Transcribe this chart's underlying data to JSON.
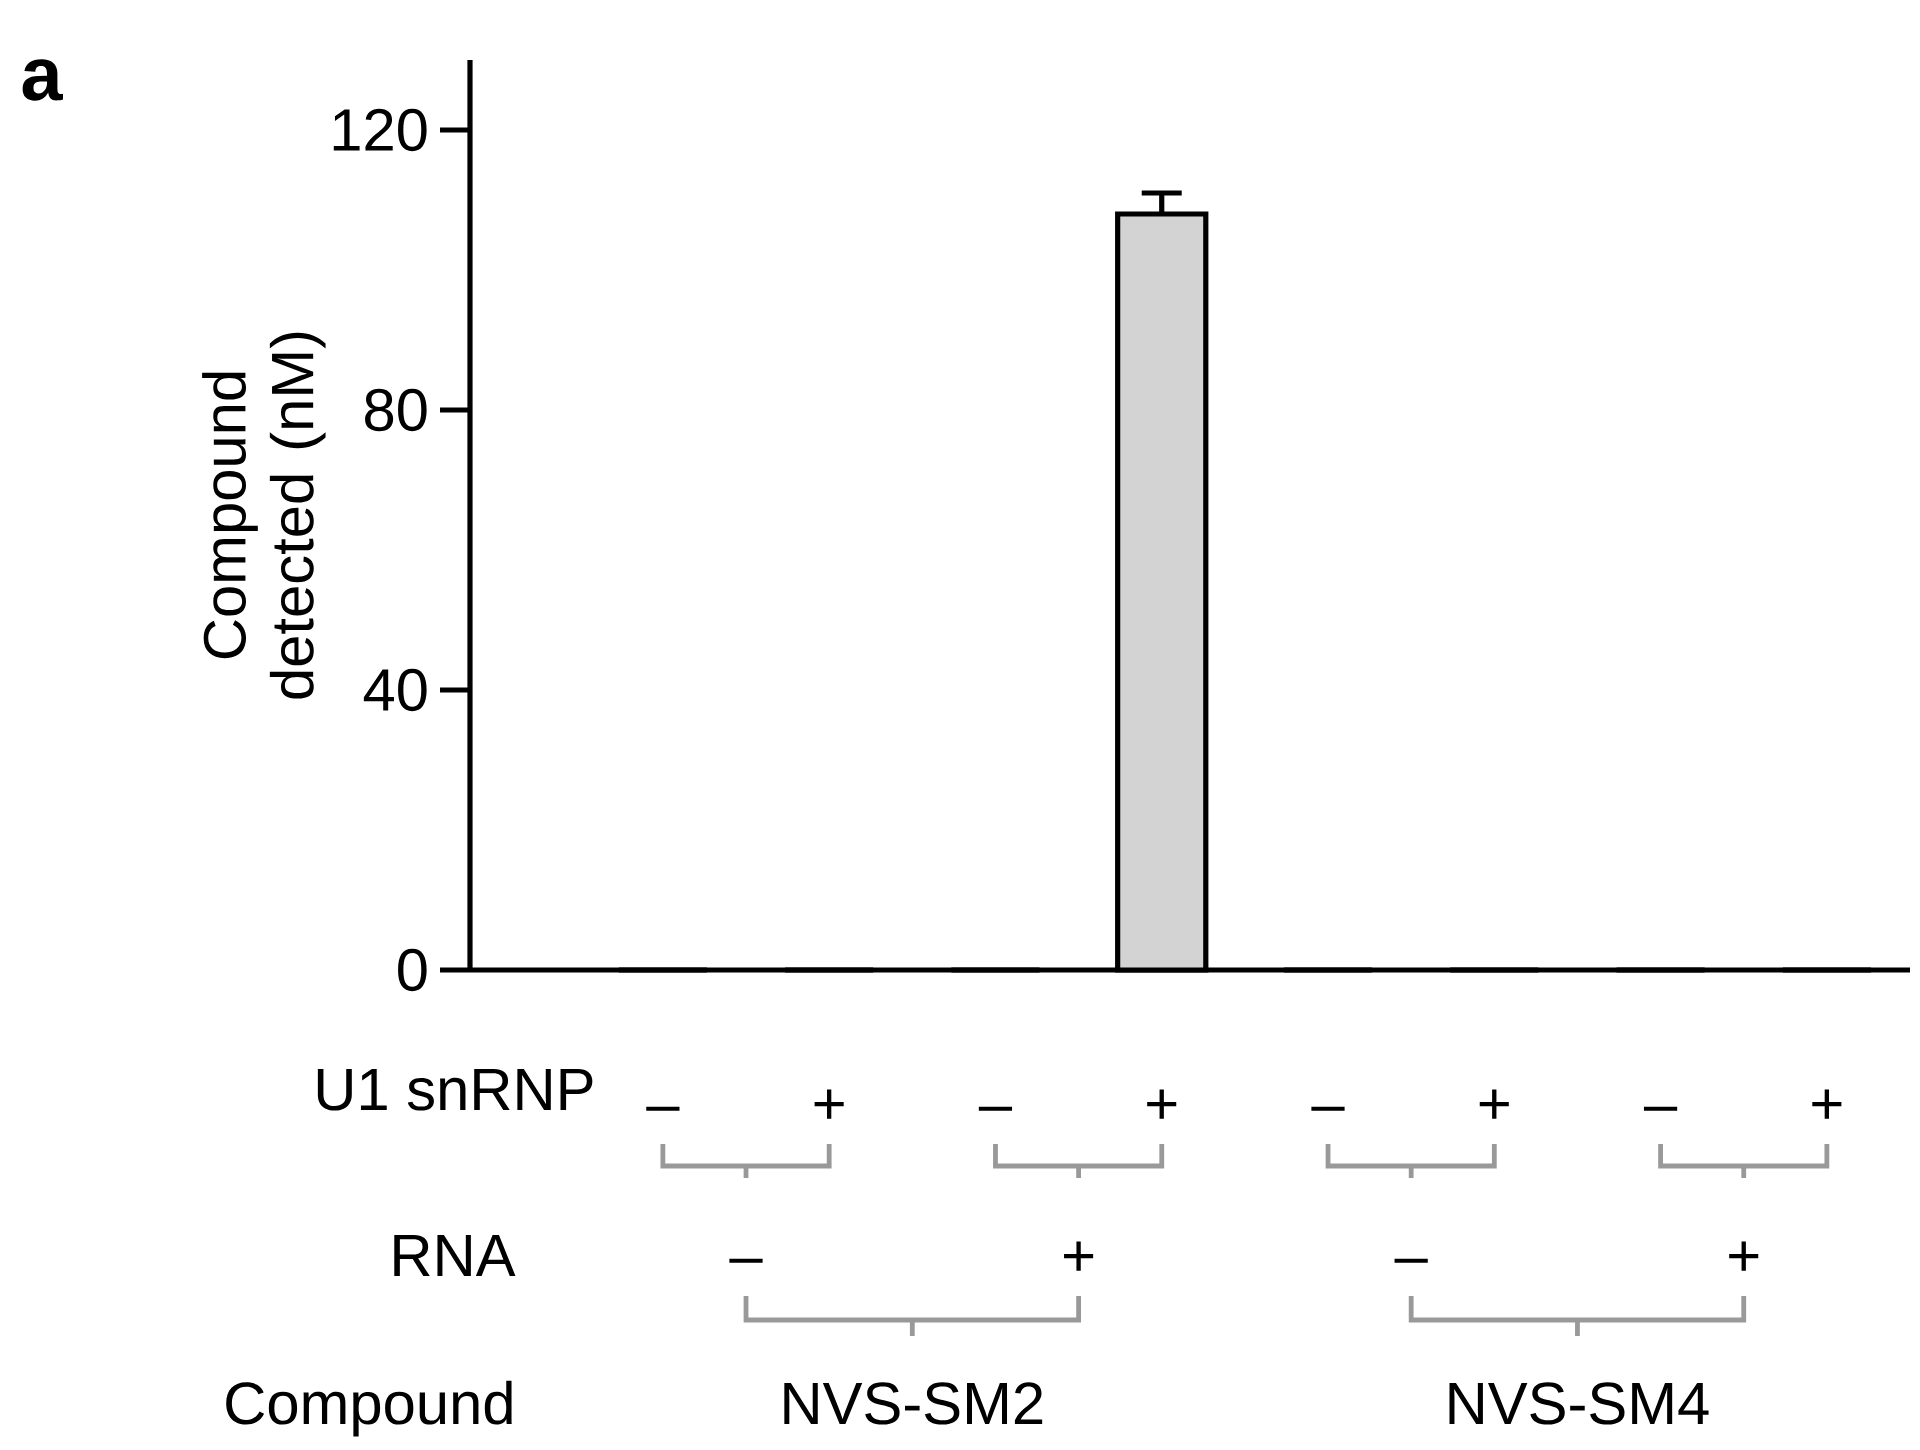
{
  "chart_data": {
    "type": "bar",
    "categories": [
      "–",
      "+",
      "–",
      "+",
      "–",
      "+",
      "–",
      "+"
    ],
    "values": [
      0,
      0,
      0,
      108,
      0,
      0,
      0,
      0
    ],
    "errors": [
      null,
      null,
      null,
      3,
      null,
      null,
      null,
      null
    ],
    "color": "#d3d3d3",
    "ylabel": "Compound detected (nM)",
    "ylim": [
      0,
      130
    ],
    "yticks": [
      0,
      40,
      80,
      120
    ],
    "annotations": [
      "a",
      "U1 snRNP",
      "RNA",
      "Compound",
      "–",
      "+",
      "–",
      "+",
      "NVS-SM2",
      "NVS-SM4"
    ]
  }
}
